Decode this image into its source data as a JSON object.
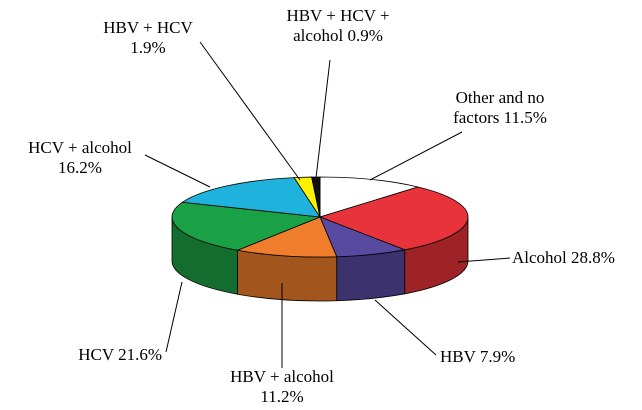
{
  "chart_data": {
    "type": "pie",
    "style": "3d",
    "categories": [
      "Other and no factors",
      "Alcohol",
      "HBV",
      "HBV + alcohol",
      "HCV",
      "HCV + alcohol",
      "HBV + HCV",
      "HBV + HCV + alcohol"
    ],
    "values": [
      11.5,
      28.8,
      7.9,
      11.2,
      21.6,
      16.2,
      1.9,
      0.9
    ],
    "value_labels": [
      "11.5%",
      "28.8%",
      "7.9%",
      "11.2%",
      "21.6%",
      "16.2%",
      "1.9%",
      "0.9%"
    ],
    "colors": [
      "#ffffff",
      "#e8333a",
      "#584aa0",
      "#ef7d2c",
      "#1ba145",
      "#1fb2dc",
      "#fff200",
      "#111111"
    ]
  }
}
